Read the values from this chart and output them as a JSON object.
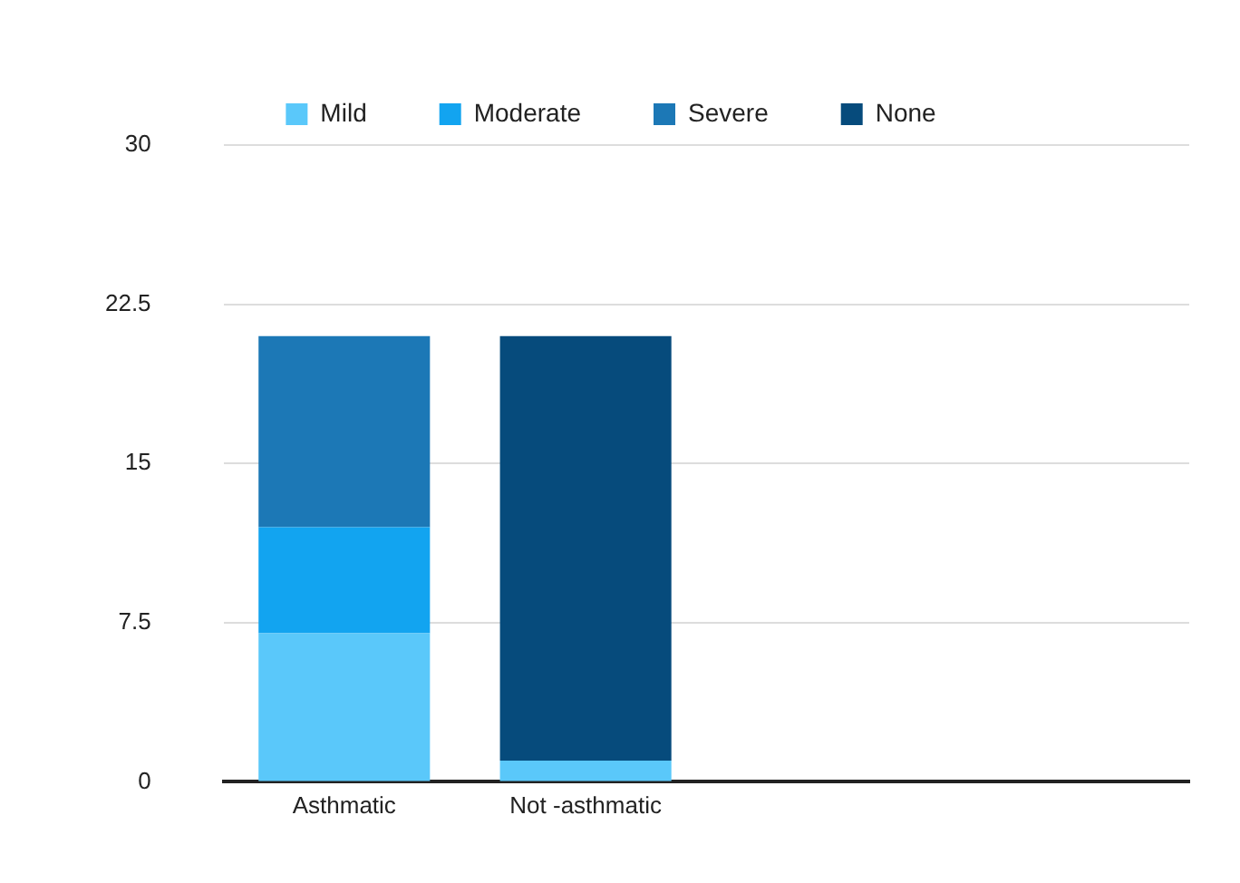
{
  "chart_data": {
    "type": "bar",
    "stacked": true,
    "categories": [
      "Asthmatic",
      "Not -asthmatic",
      null,
      null
    ],
    "series": [
      {
        "name": "Mild",
        "color": "#5ac8fa",
        "values": [
          7,
          1,
          null,
          null
        ]
      },
      {
        "name": "Moderate",
        "color": "#12a4f0",
        "values": [
          5,
          0,
          null,
          null
        ]
      },
      {
        "name": "Severe",
        "color": "#1c78b6",
        "values": [
          9,
          0,
          null,
          null
        ]
      },
      {
        "name": "None",
        "color": "#064b7c",
        "values": [
          0,
          20,
          null,
          null
        ]
      }
    ],
    "ylim": [
      0,
      30
    ],
    "yticks": [
      0,
      7.5,
      15,
      22.5,
      30
    ],
    "grid": "y",
    "legend": "top"
  }
}
